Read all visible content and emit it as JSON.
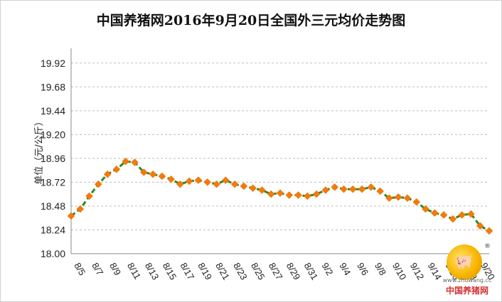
{
  "chart_data": {
    "type": "line",
    "title": "中国养猪网2016年9月20日全国外三元均价走势图",
    "ylabel": "单位（元/公斤）",
    "ylim": [
      18.0,
      20.04
    ],
    "yticks": [
      "18.00",
      "18.24",
      "18.48",
      "18.72",
      "18.96",
      "19.20",
      "19.44",
      "19.68",
      "19.92"
    ],
    "x_tick_labels": [
      "8/5",
      "8/7",
      "8/9",
      "8/11",
      "8/13",
      "8/15",
      "8/17",
      "8/19",
      "8/21",
      "8/23",
      "8/25",
      "8/27",
      "8/29",
      "8/31",
      "9/2",
      "9/4",
      "9/6",
      "9/8",
      "9/10",
      "9/12",
      "9/14",
      "9/16",
      "9/18",
      "9/20"
    ],
    "grid": true,
    "line_color": "#2e8b22",
    "marker_color": "#f47a0a",
    "series": [
      {
        "values": [
          18.38,
          18.45,
          18.58,
          18.7,
          18.8,
          18.85,
          18.93,
          18.92,
          18.82,
          18.8,
          18.78,
          18.75,
          18.7,
          18.73,
          18.74,
          18.72,
          18.7,
          18.74,
          18.7,
          18.68,
          18.66,
          18.64,
          18.6,
          18.61,
          18.59,
          18.59,
          18.58,
          18.6,
          18.64,
          18.67,
          18.65,
          18.65,
          18.65,
          18.67,
          18.63,
          18.56,
          18.57,
          18.56,
          18.52,
          18.45,
          18.41,
          18.39,
          18.35,
          18.39,
          18.4,
          18.28,
          18.23
        ]
      }
    ]
  },
  "logo": {
    "url": "www.zhuwang.cc",
    "name": "中国养猪网",
    "reg_mark": "®",
    "icon": "pig-icon"
  }
}
